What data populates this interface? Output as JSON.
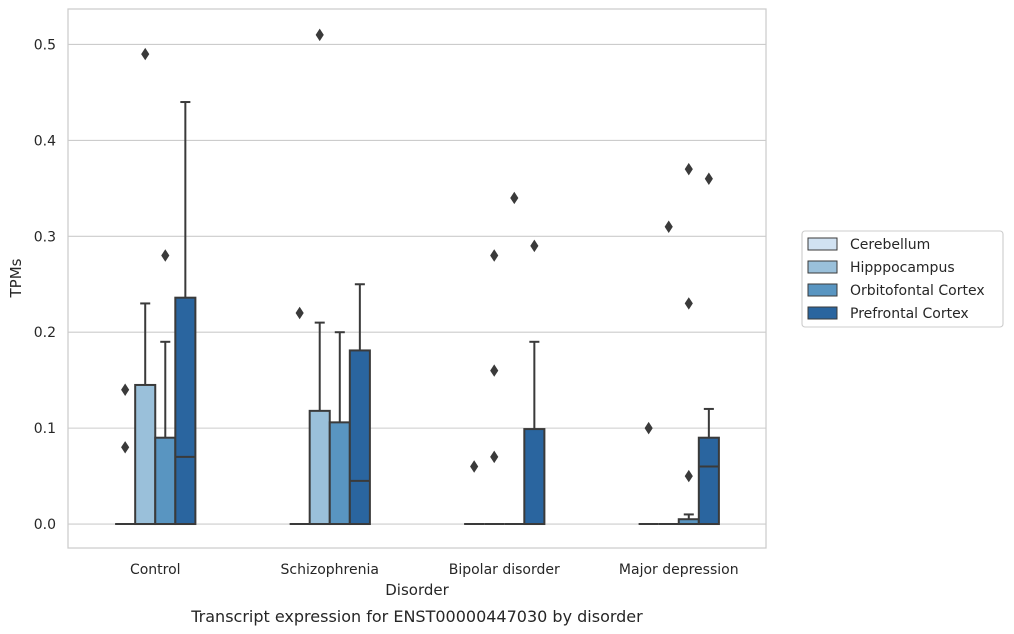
{
  "chart_data": {
    "type": "boxplot",
    "title": "",
    "caption": "Transcript expression for ENST00000447030 by disorder",
    "xlabel": "Disorder",
    "ylabel": "TPMs",
    "ylim": [
      -0.025,
      0.537
    ],
    "yticks": [
      0.0,
      0.1,
      0.2,
      0.3,
      0.4,
      0.5
    ],
    "ytick_labels": [
      "0.0",
      "0.1",
      "0.2",
      "0.3",
      "0.4",
      "0.5"
    ],
    "grid": "horizontal",
    "legend_position": "center-right",
    "categories": [
      "Control",
      "Schizophrenia",
      "Bipolar disorder",
      "Major depression"
    ],
    "series": [
      {
        "name": "Cerebellum",
        "color": "#d1e2f2",
        "boxes": [
          {
            "q1": 0,
            "median": 0,
            "q3": 0,
            "whislo": 0,
            "whishi": 0,
            "fliers": [
              0.08,
              0.14
            ]
          },
          {
            "q1": 0,
            "median": 0,
            "q3": 0,
            "whislo": 0,
            "whishi": 0,
            "fliers": [
              0.22
            ]
          },
          {
            "q1": 0,
            "median": 0,
            "q3": 0,
            "whislo": 0,
            "whishi": 0,
            "fliers": [
              0.06
            ]
          },
          {
            "q1": 0,
            "median": 0,
            "q3": 0,
            "whislo": 0,
            "whishi": 0,
            "fliers": [
              0.1
            ]
          }
        ]
      },
      {
        "name": "Hipppocampus",
        "color": "#9ac0da",
        "boxes": [
          {
            "q1": 0,
            "median": 0,
            "q3": 0.145,
            "whislo": 0,
            "whishi": 0.23,
            "fliers": [
              0.49
            ]
          },
          {
            "q1": 0,
            "median": 0,
            "q3": 0.118,
            "whislo": 0,
            "whishi": 0.21,
            "fliers": [
              0.51
            ]
          },
          {
            "q1": 0,
            "median": 0,
            "q3": 0,
            "whislo": 0,
            "whishi": 0,
            "fliers": [
              0.07,
              0.16,
              0.28
            ]
          },
          {
            "q1": 0,
            "median": 0,
            "q3": 0,
            "whislo": 0,
            "whishi": 0,
            "fliers": [
              0.31
            ]
          }
        ]
      },
      {
        "name": "Orbitofontal Cortex",
        "color": "#5995c1",
        "boxes": [
          {
            "q1": 0,
            "median": 0,
            "q3": 0.09,
            "whislo": 0,
            "whishi": 0.19,
            "fliers": [
              0.28
            ]
          },
          {
            "q1": 0,
            "median": 0,
            "q3": 0.106,
            "whislo": 0,
            "whishi": 0.2,
            "fliers": []
          },
          {
            "q1": 0,
            "median": 0,
            "q3": 0,
            "whislo": 0,
            "whishi": 0,
            "fliers": [
              0.34
            ]
          },
          {
            "q1": 0,
            "median": 0,
            "q3": 0.005,
            "whislo": 0,
            "whishi": 0.01,
            "fliers": [
              0.05,
              0.23,
              0.37
            ]
          }
        ]
      },
      {
        "name": "Prefrontal Cortex",
        "color": "#2a659f",
        "boxes": [
          {
            "q1": 0,
            "median": 0.07,
            "q3": 0.236,
            "whislo": 0,
            "whishi": 0.44,
            "fliers": []
          },
          {
            "q1": 0,
            "median": 0.045,
            "q3": 0.181,
            "whislo": 0,
            "whishi": 0.25,
            "fliers": []
          },
          {
            "q1": 0,
            "median": 0,
            "q3": 0.099,
            "whislo": 0,
            "whishi": 0.19,
            "fliers": [
              0.29
            ]
          },
          {
            "q1": 0,
            "median": 0.06,
            "q3": 0.09,
            "whislo": 0,
            "whishi": 0.12,
            "fliers": [
              0.36
            ]
          }
        ]
      }
    ]
  }
}
